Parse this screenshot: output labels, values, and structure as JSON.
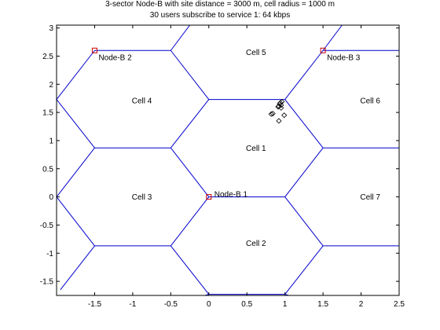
{
  "chart_data": {
    "type": "scatter",
    "title_line1": "3-sector Node-B with site distance = 3000 m, cell radius = 1000 m",
    "title_line2": "30 users subscribe to service 1:  64 kbps",
    "xlabel": "",
    "ylabel": "",
    "xlim": [
      -2.0,
      2.5
    ],
    "ylim": [
      -1.75,
      3.05
    ],
    "xticks": [
      -1.5,
      -1,
      -0.5,
      0,
      0.5,
      1,
      1.5,
      2,
      2.5
    ],
    "xtick_labels": [
      "-1.5",
      "-1",
      "-0.5",
      "0",
      "0.5",
      "1",
      "1.5",
      "2",
      "2.5"
    ],
    "yticks": [
      -1.5,
      -1,
      -0.5,
      0,
      0.5,
      1,
      1.5,
      2,
      2.5,
      3
    ],
    "ytick_labels": [
      "-1.5",
      "-1",
      "-0.5",
      "0",
      "0.5",
      "1",
      "1.5",
      "2",
      "2.5",
      "3"
    ],
    "grid": false,
    "colors": {
      "cell_boundary": "#0000cc",
      "node_b": "#cc0000",
      "users": "#000000",
      "axes": "#000000"
    },
    "cell_edges": [
      [
        [
          -2.0,
          1.73
        ],
        [
          -1.5,
          2.6
        ]
      ],
      [
        [
          -1.5,
          2.6
        ],
        [
          -0.5,
          2.6
        ]
      ],
      [
        [
          -0.5,
          2.6
        ],
        [
          -0.25,
          3.05
        ]
      ],
      [
        [
          -0.5,
          2.6
        ],
        [
          0.0,
          1.73
        ]
      ],
      [
        [
          -2.0,
          1.73
        ],
        [
          -1.5,
          0.87
        ]
      ],
      [
        [
          -1.5,
          0.87
        ],
        [
          -0.5,
          0.87
        ]
      ],
      [
        [
          -0.5,
          0.87
        ],
        [
          0.0,
          1.73
        ]
      ],
      [
        [
          0.0,
          1.73
        ],
        [
          1.0,
          1.73
        ]
      ],
      [
        [
          1.0,
          1.73
        ],
        [
          1.5,
          2.6
        ]
      ],
      [
        [
          1.5,
          2.6
        ],
        [
          2.5,
          2.6
        ]
      ],
      [
        [
          1.5,
          2.6
        ],
        [
          1.75,
          3.05
        ]
      ],
      [
        [
          1.0,
          1.73
        ],
        [
          1.5,
          0.87
        ]
      ],
      [
        [
          1.5,
          0.87
        ],
        [
          2.5,
          0.87
        ]
      ],
      [
        [
          -2.0,
          0.0
        ],
        [
          -1.5,
          0.87
        ]
      ],
      [
        [
          -2.0,
          0.0
        ],
        [
          -1.5,
          -0.87
        ]
      ],
      [
        [
          -1.5,
          -0.87
        ],
        [
          -0.5,
          -0.87
        ]
      ],
      [
        [
          -0.5,
          0.87
        ],
        [
          0.0,
          0.0
        ]
      ],
      [
        [
          0.0,
          0.0
        ],
        [
          1.0,
          0.0
        ]
      ],
      [
        [
          1.0,
          0.0
        ],
        [
          1.5,
          0.87
        ]
      ],
      [
        [
          1.0,
          0.0
        ],
        [
          1.5,
          -0.87
        ]
      ],
      [
        [
          1.5,
          -0.87
        ],
        [
          2.5,
          -0.87
        ]
      ],
      [
        [
          0.0,
          0.0
        ],
        [
          -0.5,
          -0.87
        ]
      ],
      [
        [
          -0.5,
          -0.87
        ],
        [
          0.0,
          -1.73
        ]
      ],
      [
        [
          0.0,
          -1.73
        ],
        [
          1.0,
          -1.73
        ]
      ],
      [
        [
          1.0,
          -1.73
        ],
        [
          1.5,
          -0.87
        ]
      ],
      [
        [
          -1.5,
          -0.87
        ],
        [
          -1.95,
          -1.65
        ]
      ],
      [
        [
          0.0,
          -1.73
        ],
        [
          -0.05,
          -1.75
        ]
      ],
      [
        [
          1.0,
          -1.73
        ],
        [
          1.05,
          -1.75
        ]
      ]
    ],
    "node_b": [
      {
        "name": "Node-B 1",
        "x": 0.0,
        "y": 0.0
      },
      {
        "name": "Node-B 2",
        "x": -1.5,
        "y": 2.6
      },
      {
        "name": "Node-B 3",
        "x": 1.5,
        "y": 2.6
      }
    ],
    "cell_labels": [
      {
        "name": "Cell 1",
        "x": 0.62,
        "y": 0.82
      },
      {
        "name": "Cell 2",
        "x": 0.62,
        "y": -0.87
      },
      {
        "name": "Cell 3",
        "x": -0.88,
        "y": -0.05
      },
      {
        "name": "Cell 4",
        "x": -0.88,
        "y": 1.66
      },
      {
        "name": "Cell 5",
        "x": 0.62,
        "y": 2.52
      },
      {
        "name": "Cell 6",
        "x": 2.12,
        "y": 1.66
      },
      {
        "name": "Cell 7",
        "x": 2.12,
        "y": -0.05
      }
    ],
    "users": {
      "x": [
        0.93,
        0.95,
        0.94,
        0.96,
        0.92,
        0.91,
        0.95,
        0.82,
        0.84,
        0.99,
        0.92
      ],
      "y": [
        1.65,
        1.63,
        1.67,
        1.69,
        1.61,
        1.6,
        1.58,
        1.47,
        1.48,
        1.45,
        1.35
      ]
    }
  }
}
